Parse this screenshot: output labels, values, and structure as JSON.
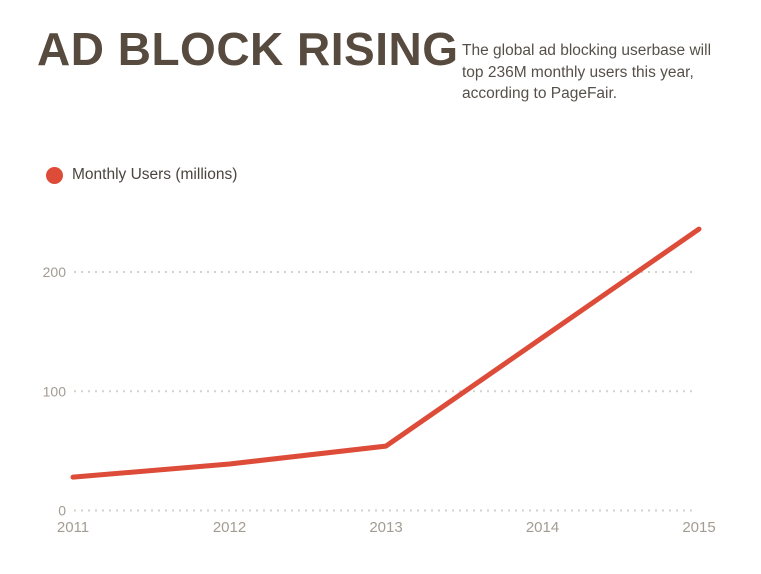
{
  "page": {
    "title": "AD BLOCK RISING",
    "subtitle": "The global ad blocking userbase will top 236M monthly users this year, according to PageFair."
  },
  "legend": {
    "label": "Monthly Users (millions)"
  },
  "colors": {
    "title_text": "#574a3e",
    "subtitle_text": "#575049",
    "axis_label": "#a39c93",
    "gridline": "#d5d1cc",
    "line": "#dd4b39",
    "background": "#ffffff"
  },
  "chart_data": {
    "type": "line",
    "title": "AD BLOCK RISING",
    "categories": [
      "2011",
      "2012",
      "2013",
      "2014",
      "2015"
    ],
    "series": [
      {
        "name": "Monthly Users (millions)",
        "values": [
          28,
          39,
          54,
          145,
          236
        ]
      }
    ],
    "xlabel": "",
    "ylabel": "Monthly Users (millions)",
    "yticks": [
      0,
      100,
      200
    ],
    "ylim": [
      0,
      250
    ],
    "grid": "horizontal-dotted",
    "legend_position": "top-left",
    "annotations": []
  }
}
